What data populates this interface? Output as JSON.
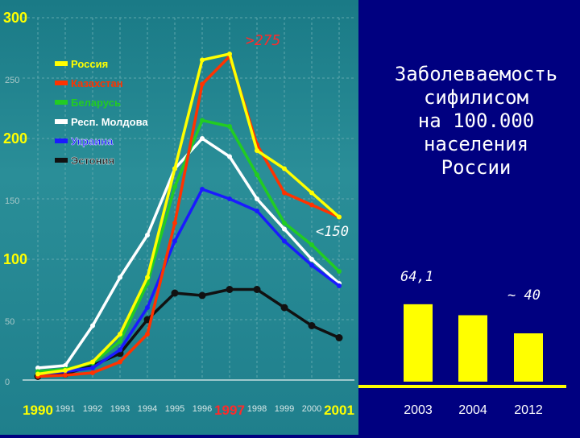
{
  "title": "Заболеваемость\nсифилисом\nна 100.000\nнаселения\nРоссии",
  "annotations": {
    "peak": ">275",
    "low": "<150",
    "value_2003": "64,1",
    "value_approx": "~ 40"
  },
  "colors": {
    "Россия": "#ffff00",
    "Казахстан": "#ff3300",
    "Беларусь": "#22cc22",
    "Респ. Молдова": "#ffffff",
    "Украина": "#1a1aff",
    "Эстония": "#111111",
    "bar_fill": "#ffff00",
    "right_bg": "#000080"
  },
  "chart_data": [
    {
      "type": "line",
      "categories": [
        "1990",
        "1991",
        "1992",
        "1993",
        "1994",
        "1995",
        "1996",
        "1997",
        "1998",
        "1999",
        "2000",
        "2001"
      ],
      "y_ticks": [
        "300",
        "250",
        "200",
        "150",
        "100",
        "50",
        "0"
      ],
      "ylim": [
        0,
        300
      ],
      "grid": true,
      "legend": "top-left",
      "series": [
        {
          "name": "Россия",
          "values": [
            5,
            8,
            15,
            38,
            85,
            175,
            265,
            270,
            190,
            175,
            155,
            135
          ]
        },
        {
          "name": "Казахстан",
          "values": [
            3,
            4,
            6,
            15,
            38,
            130,
            245,
            268,
            195,
            155,
            145,
            135
          ]
        },
        {
          "name": "Беларусь",
          "values": [
            7,
            9,
            14,
            32,
            80,
            160,
            215,
            210,
            170,
            130,
            112,
            90
          ]
        },
        {
          "name": "Респ. Молдова",
          "values": [
            10,
            12,
            45,
            85,
            120,
            175,
            200,
            185,
            150,
            125,
            100,
            80
          ]
        },
        {
          "name": "Украина",
          "values": [
            5,
            7,
            10,
            25,
            60,
            115,
            158,
            150,
            140,
            115,
            95,
            78
          ]
        },
        {
          "name": "Эстония",
          "values": [
            3,
            5,
            12,
            22,
            50,
            72,
            70,
            75,
            75,
            60,
            45,
            35
          ]
        }
      ]
    },
    {
      "type": "bar",
      "categories": [
        "2003",
        "2004",
        "2012"
      ],
      "values": [
        64.1,
        55,
        40
      ]
    }
  ]
}
